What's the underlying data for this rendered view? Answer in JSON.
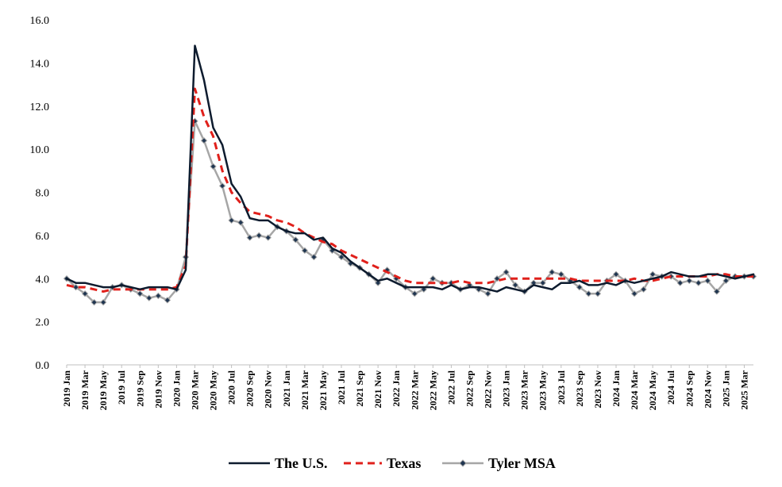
{
  "chart_data": {
    "type": "line",
    "title": "",
    "xlabel": "",
    "ylabel": "",
    "ylim": [
      0,
      16
    ],
    "y_ticks": [
      "0.0",
      "2.0",
      "4.0",
      "6.0",
      "8.0",
      "10.0",
      "12.0",
      "14.0",
      "16.0"
    ],
    "grid": false,
    "legend_position": "bottom",
    "x_tick_labels": [
      "2019 Jan",
      "2019 Mar",
      "2019 May",
      "2019 Jul",
      "2019 Sep",
      "2019 Nov",
      "2020 Jan",
      "2020 Mar",
      "2020 May",
      "2020 Jul",
      "2020 Sep",
      "2020 Nov",
      "2021 Jan",
      "2021 Mar",
      "2021 May",
      "2021 Jul",
      "2021 Sep",
      "2021 Nov",
      "2022 Jan",
      "2022 Mar",
      "2022 May",
      "2022 Jul",
      "2022 Sep",
      "2022 Nov",
      "2023 Jan",
      "2023 Mar",
      "2023 May",
      "2023 Jul",
      "2023 Sep",
      "2023 Nov",
      "2024 Jan",
      "2024 Mar",
      "2024 May",
      "2024 Jul",
      "2024 Sep",
      "2024 Nov",
      "2025 Jan",
      "2025 Mar"
    ],
    "series": [
      {
        "name": "The U.S.",
        "color": "#0d1b2e",
        "style": "solid",
        "values": [
          4.0,
          3.8,
          3.8,
          3.7,
          3.6,
          3.6,
          3.7,
          3.6,
          3.5,
          3.6,
          3.6,
          3.6,
          3.5,
          4.4,
          14.8,
          13.2,
          11.0,
          10.2,
          8.4,
          7.8,
          6.8,
          6.7,
          6.7,
          6.4,
          6.2,
          6.1,
          6.1,
          5.8,
          5.9,
          5.4,
          5.2,
          4.8,
          4.5,
          4.2,
          3.9,
          4.0,
          3.8,
          3.6,
          3.6,
          3.6,
          3.6,
          3.5,
          3.7,
          3.5,
          3.6,
          3.6,
          3.5,
          3.4,
          3.6,
          3.5,
          3.4,
          3.7,
          3.6,
          3.5,
          3.8,
          3.8,
          3.9,
          3.7,
          3.7,
          3.8,
          3.7,
          3.9,
          3.8,
          3.9,
          4.0,
          4.1,
          4.3,
          4.2,
          4.1,
          4.1,
          4.2,
          4.2,
          4.1,
          4.0,
          4.1,
          4.2
        ]
      },
      {
        "name": "Texas",
        "color": "#e0201b",
        "style": "dashed",
        "values": [
          3.7,
          3.6,
          3.6,
          3.5,
          3.4,
          3.5,
          3.5,
          3.5,
          3.5,
          3.5,
          3.5,
          3.5,
          3.6,
          4.6,
          12.8,
          11.5,
          10.6,
          9.0,
          8.0,
          7.5,
          7.1,
          7.0,
          6.9,
          6.7,
          6.6,
          6.4,
          6.1,
          5.9,
          5.7,
          5.6,
          5.3,
          5.1,
          4.9,
          4.7,
          4.5,
          4.3,
          4.1,
          3.9,
          3.8,
          3.8,
          3.8,
          3.8,
          3.8,
          3.9,
          3.8,
          3.8,
          3.8,
          3.9,
          4.0,
          4.0,
          4.0,
          4.0,
          4.0,
          4.0,
          4.0,
          4.0,
          3.9,
          3.9,
          3.9,
          3.9,
          3.9,
          3.9,
          4.0,
          3.9,
          3.9,
          4.0,
          4.1,
          4.1,
          4.1,
          4.1,
          4.1,
          4.2,
          4.2,
          4.1,
          4.1,
          4.1
        ]
      },
      {
        "name": "Tyler MSA",
        "color": "#a6a6a6",
        "style": "solid-marker",
        "values": [
          4.0,
          3.6,
          3.3,
          2.9,
          2.9,
          3.6,
          3.7,
          3.5,
          3.3,
          3.1,
          3.2,
          3.0,
          3.5,
          5.0,
          11.3,
          10.4,
          9.2,
          8.3,
          6.7,
          6.6,
          5.9,
          6.0,
          5.9,
          6.4,
          6.2,
          5.8,
          5.3,
          5.0,
          5.8,
          5.3,
          5.0,
          4.7,
          4.5,
          4.2,
          3.8,
          4.4,
          4.0,
          3.6,
          3.3,
          3.5,
          4.0,
          3.8,
          3.8,
          3.5,
          3.7,
          3.5,
          3.3,
          4.0,
          4.3,
          3.7,
          3.4,
          3.8,
          3.8,
          4.3,
          4.2,
          3.9,
          3.6,
          3.3,
          3.3,
          3.9,
          4.2,
          3.9,
          3.3,
          3.5,
          4.2,
          4.1,
          4.1,
          3.8,
          3.9,
          3.8,
          3.9,
          3.4,
          3.9,
          4.1,
          4.1,
          4.1
        ]
      }
    ]
  }
}
